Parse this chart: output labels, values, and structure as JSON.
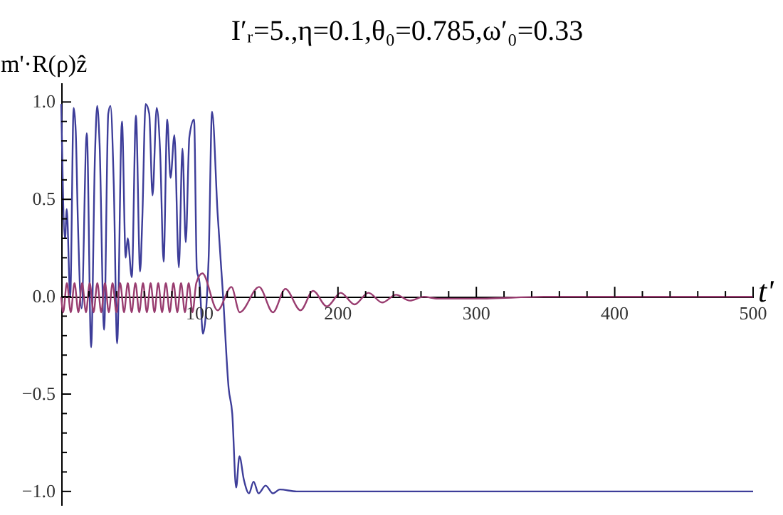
{
  "chart_data": {
    "type": "line",
    "title": "I′ᵣ=5.,η=0.1,θ₀=0.785,ω′₀=0.33",
    "xlabel": "t'",
    "ylabel": "m'·R(ρ)ẑ",
    "xlim": [
      0,
      500
    ],
    "ylim": [
      -1.07,
      1.1
    ],
    "xticks": [
      {
        "value": 20,
        "label": null
      },
      {
        "value": 40,
        "label": null
      },
      {
        "value": 60,
        "label": null
      },
      {
        "value": 80,
        "label": null
      },
      100,
      {
        "value": 120,
        "label": null
      },
      {
        "value": 140,
        "label": null
      },
      {
        "value": 160,
        "label": null
      },
      {
        "value": 180,
        "label": null
      },
      200,
      {
        "value": 220,
        "label": null
      },
      {
        "value": 240,
        "label": null
      },
      {
        "value": 260,
        "label": null
      },
      {
        "value": 280,
        "label": null
      },
      300,
      {
        "value": 320,
        "label": null
      },
      {
        "value": 340,
        "label": null
      },
      {
        "value": 360,
        "label": null
      },
      {
        "value": 380,
        "label": null
      },
      400,
      {
        "value": 420,
        "label": null
      },
      {
        "value": 440,
        "label": null
      },
      {
        "value": 460,
        "label": null
      },
      {
        "value": 480,
        "label": null
      },
      500
    ],
    "yticks": [
      {
        "value": -1,
        "label": "−1.0"
      },
      {
        "value": -0.9,
        "label": null
      },
      {
        "value": -0.8,
        "label": null
      },
      {
        "value": -0.7,
        "label": null
      },
      {
        "value": -0.6,
        "label": null
      },
      {
        "value": -0.5,
        "label": "−0.5"
      },
      {
        "value": -0.4,
        "label": null
      },
      {
        "value": -0.3,
        "label": null
      },
      {
        "value": -0.2,
        "label": null
      },
      {
        "value": -0.1,
        "label": null
      },
      {
        "value": 0,
        "label": "0.0"
      },
      {
        "value": 0.1,
        "label": null
      },
      {
        "value": 0.2,
        "label": null
      },
      {
        "value": 0.3,
        "label": null
      },
      {
        "value": 0.4,
        "label": null
      },
      {
        "value": 0.5,
        "label": "0.5"
      },
      {
        "value": 0.6,
        "label": null
      },
      {
        "value": 0.7,
        "label": null
      },
      {
        "value": 0.8,
        "label": null
      },
      {
        "value": 0.9,
        "label": null
      },
      {
        "value": 1,
        "label": "1.0"
      }
    ],
    "grid": false,
    "marker": "none",
    "line_style": "solid",
    "series": [
      {
        "color": "#3d3d99",
        "x": [
          0,
          2.8,
          4,
          6.5,
          9,
          10.5,
          12,
          14.7,
          18.5,
          21.6,
          24.4,
          26,
          27.7,
          31,
          34,
          35.6,
          38,
          40.4,
          43.9,
          46.6,
          48,
          51,
          54,
          57,
          58.6,
          61,
          63.6,
          66,
          69,
          71.5,
          74,
          76.6,
          79,
          81.8,
          85,
          87.6,
          90,
          92.6,
          96,
          98,
          100,
          102.4,
          106.5,
          109,
          113,
          117,
          121,
          123.6,
          126.4,
          128.8,
          132,
          135.7,
          139,
          142.6,
          147.7,
          153,
          158,
          170,
          200,
          300,
          400,
          500
        ],
        "values": [
          0.99,
          0.3,
          0.45,
          0.0,
          0.97,
          0.85,
          0.4,
          -0.06,
          0.84,
          -0.26,
          0.73,
          0.98,
          0.79,
          -0.17,
          0.94,
          0.98,
          0.57,
          -0.24,
          0.9,
          0.2,
          0.3,
          0.1,
          0.93,
          0.13,
          0.4,
          0.99,
          0.94,
          0.52,
          0.97,
          0.74,
          0.18,
          0.91,
          0.61,
          0.83,
          0.15,
          0.76,
          0.28,
          0.82,
          0.91,
          0.14,
          0.07,
          -0.19,
          0.19,
          0.95,
          0.43,
          0.0,
          -0.47,
          -0.6,
          -0.98,
          -0.82,
          -0.94,
          -1.01,
          -0.95,
          -1.01,
          -0.97,
          -1.01,
          -0.99,
          -1.0,
          -1.0,
          -1.0,
          -1.0,
          -1.0
        ]
      },
      {
        "color": "#993d70",
        "x": [
          0,
          1.4,
          4.1,
          6.9,
          9.6,
          12.4,
          15.1,
          17.9,
          20.6,
          23.4,
          26.1,
          28.9,
          31.6,
          34.4,
          37.1,
          39.9,
          42.6,
          45.4,
          48.1,
          50.9,
          53.6,
          56.4,
          59.1,
          61.9,
          64.6,
          67.4,
          70.1,
          72.9,
          75.6,
          78.4,
          81.1,
          83.9,
          86.6,
          89.4,
          92.1,
          94.9,
          97.6,
          102,
          113,
          123,
          129,
          143,
          153,
          162,
          173,
          182,
          192,
          202,
          212,
          222,
          232,
          242,
          252,
          262,
          272,
          300,
          350,
          400,
          500
        ],
        "values": [
          0.0,
          -0.08,
          0.07,
          -0.08,
          0.07,
          -0.08,
          0.07,
          -0.08,
          0.07,
          -0.08,
          0.07,
          -0.08,
          0.07,
          -0.08,
          0.07,
          -0.08,
          0.07,
          -0.08,
          0.07,
          -0.08,
          0.07,
          -0.08,
          0.07,
          -0.08,
          0.07,
          -0.08,
          0.07,
          -0.08,
          0.07,
          -0.08,
          0.07,
          -0.08,
          0.07,
          -0.08,
          0.07,
          -0.08,
          0.07,
          0.12,
          -0.07,
          0.05,
          -0.08,
          0.05,
          -0.08,
          0.04,
          -0.07,
          0.03,
          -0.05,
          0.02,
          -0.04,
          0.02,
          -0.03,
          0.01,
          -0.02,
          0.0,
          -0.01,
          -0.01,
          0.0,
          0.0,
          0.0
        ]
      }
    ]
  }
}
